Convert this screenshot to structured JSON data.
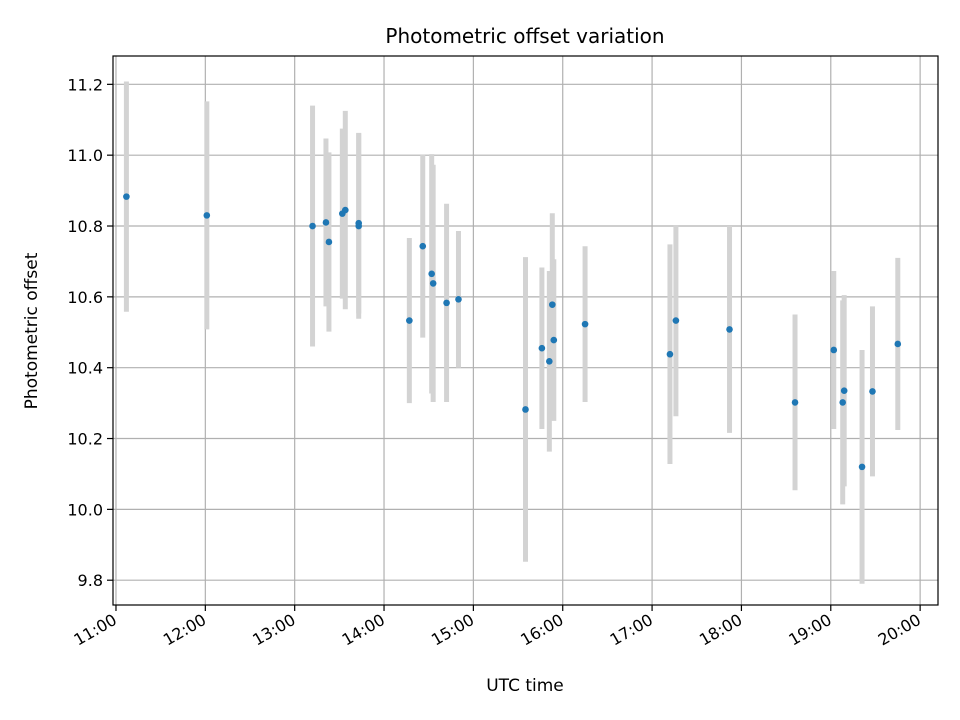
{
  "chart_data": {
    "type": "scatter",
    "title": "Photometric offset variation",
    "xlabel": "UTC time",
    "ylabel": "Photometric offset",
    "grid": true,
    "xlim": [
      "10:58",
      "20:12"
    ],
    "ylim": [
      9.73,
      11.28
    ],
    "x_ticks": [
      "11:00",
      "12:00",
      "13:00",
      "14:00",
      "15:00",
      "16:00",
      "17:00",
      "18:00",
      "19:00",
      "20:00"
    ],
    "y_ticks": [
      "9.8",
      "10.0",
      "10.2",
      "10.4",
      "10.6",
      "10.8",
      "11.0",
      "11.2"
    ],
    "colors": {
      "points": "#1f77b4",
      "error_bars": "#d3d3d3",
      "grid": "#b0b0b0"
    },
    "points": [
      {
        "t": "11:07",
        "y": 10.883,
        "err": 0.325
      },
      {
        "t": "12:01",
        "y": 10.83,
        "err": 0.322
      },
      {
        "t": "13:12",
        "y": 10.8,
        "err": 0.34
      },
      {
        "t": "13:21",
        "y": 10.81,
        "err": 0.237
      },
      {
        "t": "13:23",
        "y": 10.755,
        "err": 0.253
      },
      {
        "t": "13:32",
        "y": 10.835,
        "err": 0.24
      },
      {
        "t": "13:34",
        "y": 10.845,
        "err": 0.28
      },
      {
        "t": "13:43",
        "y": 10.8,
        "err": 0.262
      },
      {
        "t": "13:43",
        "y": 10.808,
        "err": 0.255
      },
      {
        "t": "14:17",
        "y": 10.533,
        "err": 0.233
      },
      {
        "t": "14:26",
        "y": 10.743,
        "err": 0.258
      },
      {
        "t": "14:32",
        "y": 10.665,
        "err": 0.338
      },
      {
        "t": "14:33",
        "y": 10.638,
        "err": 0.335
      },
      {
        "t": "14:42",
        "y": 10.583,
        "err": 0.28
      },
      {
        "t": "14:50",
        "y": 10.593,
        "err": 0.193
      },
      {
        "t": "15:35",
        "y": 10.282,
        "err": 0.43
      },
      {
        "t": "15:46",
        "y": 10.455,
        "err": 0.228
      },
      {
        "t": "15:51",
        "y": 10.418,
        "err": 0.255
      },
      {
        "t": "15:53",
        "y": 10.578,
        "err": 0.258
      },
      {
        "t": "15:54",
        "y": 10.478,
        "err": 0.228
      },
      {
        "t": "16:15",
        "y": 10.523,
        "err": 0.22
      },
      {
        "t": "17:12",
        "y": 10.438,
        "err": 0.31
      },
      {
        "t": "17:16",
        "y": 10.533,
        "err": 0.27
      },
      {
        "t": "17:52",
        "y": 10.508,
        "err": 0.292
      },
      {
        "t": "18:36",
        "y": 10.302,
        "err": 0.248
      },
      {
        "t": "19:02",
        "y": 10.45,
        "err": 0.223
      },
      {
        "t": "19:09",
        "y": 10.335,
        "err": 0.27
      },
      {
        "t": "19:08",
        "y": 10.302,
        "err": 0.288
      },
      {
        "t": "19:21",
        "y": 10.12,
        "err": 0.33
      },
      {
        "t": "19:28",
        "y": 10.333,
        "err": 0.24
      },
      {
        "t": "19:45",
        "y": 10.467,
        "err": 0.243
      }
    ]
  }
}
